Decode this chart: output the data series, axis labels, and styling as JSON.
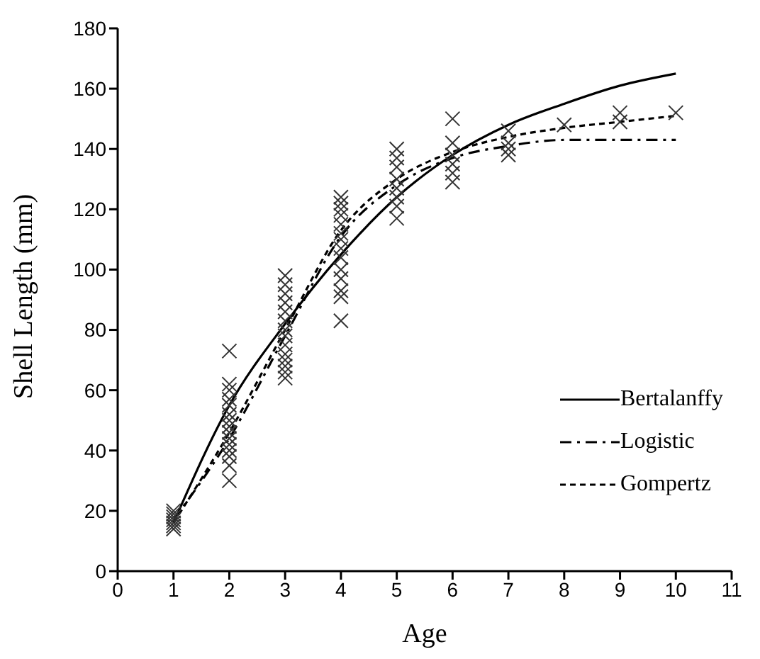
{
  "chart_data": {
    "type": "line",
    "xlabel": "Age",
    "ylabel": "Shell Length (mm)",
    "x": [
      1,
      2,
      3,
      4,
      5,
      6,
      7,
      8,
      9,
      10
    ],
    "xlim": [
      0,
      11
    ],
    "xticks": [
      0,
      1,
      2,
      3,
      4,
      5,
      6,
      7,
      8,
      9,
      10,
      11
    ],
    "ylim": [
      0,
      180
    ],
    "yticks": [
      0,
      20,
      40,
      60,
      80,
      100,
      120,
      140,
      160,
      180
    ],
    "grid": false,
    "legend": "right",
    "marker": "none",
    "series": [
      {
        "type": "scatter",
        "marker": "cross",
        "color": "#333333",
        "x": [
          1,
          1,
          1,
          1,
          1,
          1,
          1,
          2,
          2,
          2,
          2,
          2,
          2,
          2,
          2,
          2,
          2,
          2,
          2,
          2,
          2,
          2,
          3,
          3,
          3,
          3,
          3,
          3,
          3,
          3,
          3,
          3,
          3,
          3,
          3,
          3,
          4,
          4,
          4,
          4,
          4,
          4,
          4,
          4,
          4,
          4,
          4,
          4,
          4,
          4,
          5,
          5,
          5,
          5,
          5,
          5,
          5,
          5,
          6,
          6,
          6,
          6,
          6,
          6,
          7,
          7,
          7,
          7,
          8,
          9,
          9,
          10
        ],
        "values": [
          14,
          15,
          16,
          17,
          18,
          19,
          20,
          73,
          62,
          60,
          57,
          55,
          52,
          50,
          48,
          46,
          44,
          42,
          40,
          38,
          35,
          30,
          98,
          95,
          92,
          89,
          86,
          83,
          80,
          78,
          75,
          72,
          70,
          68,
          66,
          64,
          124,
          122,
          120,
          118,
          115,
          112,
          110,
          107,
          104,
          100,
          97,
          93,
          91,
          83,
          140,
          137,
          134,
          130,
          127,
          124,
          121,
          117,
          150,
          142,
          138,
          135,
          132,
          129,
          146,
          142,
          140,
          138,
          148,
          152,
          149,
          152
        ]
      },
      {
        "name": "Bertalanffy",
        "color": "#000000",
        "line_style": "solid",
        "values": [
          16,
          55,
          82,
          105,
          124,
          138,
          148,
          155,
          161,
          165
        ]
      },
      {
        "name": "Logistic",
        "color": "#000000",
        "line_style": "dashdot",
        "values": [
          17,
          44,
          78,
          111,
          128,
          137,
          141,
          143,
          143,
          143
        ]
      },
      {
        "name": "Gompertz",
        "color": "#000000",
        "line_style": "dashed",
        "values": [
          16,
          46,
          80,
          113,
          130,
          139,
          144,
          147,
          149,
          151
        ]
      }
    ]
  }
}
